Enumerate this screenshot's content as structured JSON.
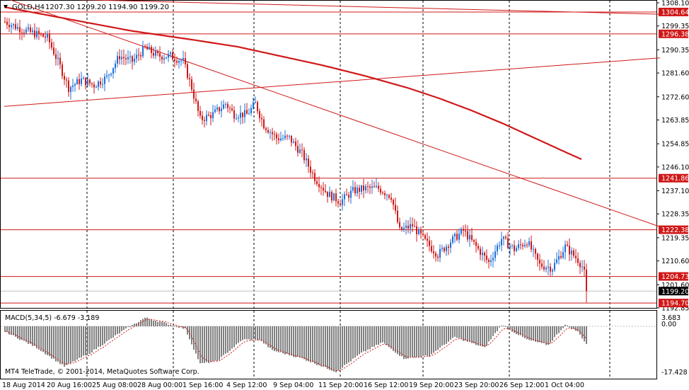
{
  "header": {
    "symbol_label": "GOLD,H4",
    "ohlc": "1207.30 1209.20 1194.90 1199.20"
  },
  "macd": {
    "label": "MACD(5,34,5) -6.679 -3.189",
    "axis_top": "3.683",
    "axis_zero": "0.00",
    "axis_bottom": "-17.428"
  },
  "copyright": "MT4 TeleTrade, © 2001-2014, MetaQuotes Software Corp.",
  "colors": {
    "bull_candle": "#1f6fd6",
    "bear_candle": "#d01818",
    "level_line": "#d01818",
    "ma_line": "#d01818",
    "grid": "#000000",
    "macd_histogram": "#808080",
    "macd_signal": "#d01818"
  },
  "chart_data": {
    "type": "candlestick",
    "symbol": "GOLD",
    "timeframe": "H4",
    "y_range": [
      1192.85,
      1308.1
    ],
    "x_tick_labels": [
      "18 Aug 2014",
      "20 Aug 16:00",
      "25 Aug 08:00",
      "28 Aug 00:00",
      "1 Sep 16:00",
      "4 Sep 12:00",
      "9 Sep 04:00",
      "11 Sep 20:00",
      "16 Sep 12:00",
      "19 Sep 20:00",
      "23 Sep 20:00",
      "26 Sep 12:00",
      "1 Oct 04:00"
    ],
    "y_tick_labels": [
      "1308.10",
      "1299.35",
      "1290.35",
      "1281.60",
      "1272.60",
      "1263.85",
      "1254.85",
      "1246.10",
      "1237.10",
      "1228.35",
      "1219.35",
      "1210.60",
      "1201.60",
      "1192.85"
    ],
    "horizontal_levels": [
      {
        "value": 1304.64,
        "label": "1304.64"
      },
      {
        "value": 1296.38,
        "label": "1296.38"
      },
      {
        "value": 1241.86,
        "label": "1241.86"
      },
      {
        "value": 1222.38,
        "label": "1222.38"
      },
      {
        "value": 1204.73,
        "label": "1204.73"
      },
      {
        "value": 1194.7,
        "label": "1194.70"
      }
    ],
    "current_price": {
      "value": 1199.2,
      "label": "1199.20"
    },
    "moving_average": [
      {
        "bar": 0,
        "price": 1306.5
      },
      {
        "bar": 30,
        "price": 1302.0
      },
      {
        "bar": 60,
        "price": 1297.5
      },
      {
        "bar": 90,
        "price": 1294.0
      },
      {
        "bar": 110,
        "price": 1291.5
      },
      {
        "bar": 130,
        "price": 1288.0
      },
      {
        "bar": 150,
        "price": 1284.5
      },
      {
        "bar": 170,
        "price": 1280.5
      },
      {
        "bar": 190,
        "price": 1276.0
      },
      {
        "bar": 205,
        "price": 1272.0
      },
      {
        "bar": 220,
        "price": 1267.5
      },
      {
        "bar": 235,
        "price": 1262.5
      },
      {
        "bar": 250,
        "price": 1257.0
      },
      {
        "bar": 265,
        "price": 1251.5
      },
      {
        "bar": 272,
        "price": 1249.0
      }
    ],
    "trendlines": [
      {
        "name": "upper_descending",
        "from": {
          "bar": 0,
          "price": 1310.0
        },
        "to": {
          "bar": 309,
          "price": 1303.8
        }
      },
      {
        "name": "rising",
        "from": {
          "bar": 0,
          "price": 1269.0
        },
        "to": {
          "bar": 309,
          "price": 1287.3
        }
      },
      {
        "name": "falling",
        "from": {
          "bar": 0,
          "price": 1310.0
        },
        "to": {
          "bar": 309,
          "price": 1223.5
        }
      }
    ],
    "candles_keypoints": [
      {
        "bar": 0,
        "price": 1301
      },
      {
        "bar": 8,
        "price": 1298
      },
      {
        "bar": 12,
        "price": 1297
      },
      {
        "bar": 20,
        "price": 1295
      },
      {
        "bar": 26,
        "price": 1284
      },
      {
        "bar": 30,
        "price": 1276
      },
      {
        "bar": 36,
        "price": 1279
      },
      {
        "bar": 42,
        "price": 1277
      },
      {
        "bar": 48,
        "price": 1280
      },
      {
        "bar": 54,
        "price": 1288
      },
      {
        "bar": 60,
        "price": 1286
      },
      {
        "bar": 66,
        "price": 1291
      },
      {
        "bar": 72,
        "price": 1288
      },
      {
        "bar": 78,
        "price": 1288
      },
      {
        "bar": 84,
        "price": 1286
      },
      {
        "bar": 88,
        "price": 1276
      },
      {
        "bar": 92,
        "price": 1264
      },
      {
        "bar": 98,
        "price": 1266
      },
      {
        "bar": 104,
        "price": 1270
      },
      {
        "bar": 108,
        "price": 1266
      },
      {
        "bar": 114,
        "price": 1266
      },
      {
        "bar": 118,
        "price": 1270
      },
      {
        "bar": 122,
        "price": 1262
      },
      {
        "bar": 128,
        "price": 1257
      },
      {
        "bar": 134,
        "price": 1257
      },
      {
        "bar": 140,
        "price": 1251
      },
      {
        "bar": 146,
        "price": 1242
      },
      {
        "bar": 152,
        "price": 1236
      },
      {
        "bar": 158,
        "price": 1233
      },
      {
        "bar": 164,
        "price": 1237
      },
      {
        "bar": 170,
        "price": 1238
      },
      {
        "bar": 176,
        "price": 1238
      },
      {
        "bar": 182,
        "price": 1235
      },
      {
        "bar": 186,
        "price": 1222
      },
      {
        "bar": 192,
        "price": 1224
      },
      {
        "bar": 198,
        "price": 1218
      },
      {
        "bar": 204,
        "price": 1213
      },
      {
        "bar": 210,
        "price": 1218
      },
      {
        "bar": 216,
        "price": 1222
      },
      {
        "bar": 222,
        "price": 1216
      },
      {
        "bar": 228,
        "price": 1210
      },
      {
        "bar": 234,
        "price": 1219
      },
      {
        "bar": 240,
        "price": 1215
      },
      {
        "bar": 246,
        "price": 1218
      },
      {
        "bar": 252,
        "price": 1209
      },
      {
        "bar": 258,
        "price": 1208
      },
      {
        "bar": 264,
        "price": 1216
      },
      {
        "bar": 270,
        "price": 1211
      },
      {
        "bar": 273,
        "price": 1207.3
      },
      {
        "bar": 274,
        "price": 1199.2
      }
    ],
    "macd_histogram_keypoints": [
      {
        "bar": 0,
        "value": -2
      },
      {
        "bar": 15,
        "value": -8
      },
      {
        "bar": 28,
        "value": -15
      },
      {
        "bar": 40,
        "value": -10
      },
      {
        "bar": 55,
        "value": -2
      },
      {
        "bar": 66,
        "value": 3.2
      },
      {
        "bar": 74,
        "value": 1.5
      },
      {
        "bar": 85,
        "value": -1
      },
      {
        "bar": 92,
        "value": -14
      },
      {
        "bar": 100,
        "value": -13
      },
      {
        "bar": 112,
        "value": -5
      },
      {
        "bar": 120,
        "value": -5
      },
      {
        "bar": 126,
        "value": -9
      },
      {
        "bar": 140,
        "value": -12
      },
      {
        "bar": 156,
        "value": -17
      },
      {
        "bar": 168,
        "value": -10
      },
      {
        "bar": 178,
        "value": -6
      },
      {
        "bar": 188,
        "value": -12
      },
      {
        "bar": 200,
        "value": -11
      },
      {
        "bar": 212,
        "value": -4
      },
      {
        "bar": 226,
        "value": -8
      },
      {
        "bar": 234,
        "value": 0.5
      },
      {
        "bar": 246,
        "value": -5
      },
      {
        "bar": 256,
        "value": -7
      },
      {
        "bar": 264,
        "value": 0.5
      },
      {
        "bar": 270,
        "value": -2
      },
      {
        "bar": 274,
        "value": -6.679
      }
    ]
  }
}
